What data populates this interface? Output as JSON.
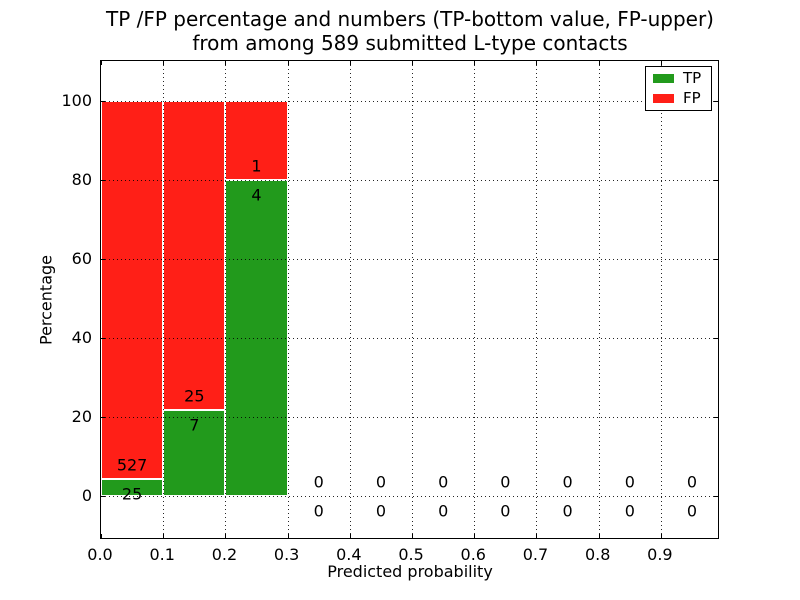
{
  "chart_data": {
    "type": "bar",
    "stacked": true,
    "title": "TP /FP percentage and numbers (TP-bottom value, FP-upper)\nfrom among 589 submitted L-type contacts",
    "title_lines": [
      "TP /FP percentage and numbers (TP-bottom value, FP-upper)",
      "from among 589 submitted L-type contacts"
    ],
    "xlabel": "Predicted probability",
    "ylabel": "Percentage",
    "total_submitted_contacts": 589,
    "bin_width": 0.1,
    "bin_starts": [
      0.0,
      0.1,
      0.2,
      0.3,
      0.4,
      0.5,
      0.6,
      0.7,
      0.8,
      0.9
    ],
    "series": [
      {
        "name": "TP",
        "color": "#229a1c",
        "counts": [
          25,
          7,
          4,
          0,
          0,
          0,
          0,
          0,
          0,
          0
        ],
        "percents": [
          4.5,
          21.9,
          80.0,
          0,
          0,
          0,
          0,
          0,
          0,
          0
        ]
      },
      {
        "name": "FP",
        "color": "#ff1f17",
        "counts": [
          527,
          25,
          1,
          0,
          0,
          0,
          0,
          0,
          0,
          0
        ],
        "percents": [
          95.5,
          78.1,
          20.0,
          0,
          0,
          0,
          0,
          0,
          0,
          0
        ]
      }
    ],
    "xtick_labels": [
      "0.0",
      "0.1",
      "0.2",
      "0.3",
      "0.4",
      "0.5",
      "0.6",
      "0.7",
      "0.8",
      "0.9"
    ],
    "ytick_labels": [
      "0",
      "20",
      "40",
      "60",
      "80",
      "100"
    ],
    "yticks": [
      0,
      20,
      40,
      60,
      80,
      100
    ],
    "xlim": [
      0,
      0.995
    ],
    "ylim": [
      -11,
      110
    ],
    "grid": "dotted",
    "grid_color": "#000000",
    "bar_edge_color": "#ffffff",
    "label_color": "#000000",
    "legend": {
      "position": "upper right",
      "entries": [
        {
          "label": "TP",
          "color": "#229a1c"
        },
        {
          "label": "FP",
          "color": "#ff1f17"
        }
      ]
    }
  }
}
